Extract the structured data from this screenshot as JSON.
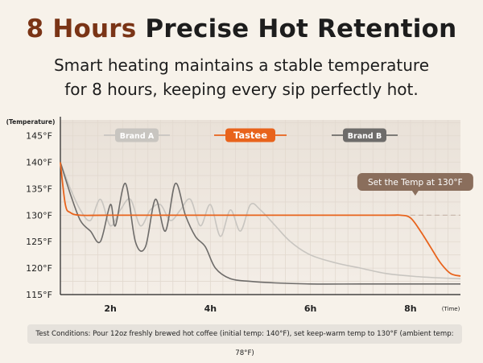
{
  "headline": {
    "highlight": "8 Hours",
    "rest": "Precise Hot Retention"
  },
  "subtitle": {
    "line1": "Smart heating maintains a stable temperature",
    "line2": "for 8 hours, keeping every sip perfectly hot."
  },
  "footnote": "Test Conditions: Pour 12oz freshly brewed hot coffee (initial temp: 140°F), set keep-warm temp to 130°F (ambient temp: 78°F)",
  "colors": {
    "background": "#f7f2ea",
    "brand_a": "#c8c5c0",
    "tastee": "#e8631c",
    "brand_b": "#6e6c6a",
    "callout": "#8a6e5c",
    "headline_accent": "#7a3416"
  },
  "chart_data": {
    "type": "line",
    "ylabel": "(Temperature)",
    "xlabel": "(Time)",
    "y_ticks": [
      "145°F",
      "140°F",
      "135°F",
      "130°F",
      "125°F",
      "120°F",
      "115°F"
    ],
    "y_tick_values": [
      145,
      140,
      135,
      130,
      125,
      120,
      115
    ],
    "x_ticks": [
      "2h",
      "4h",
      "6h",
      "8h"
    ],
    "x_tick_values": [
      2,
      4,
      6,
      8
    ],
    "xlim": [
      1.0,
      9.0
    ],
    "ylim": [
      115,
      148
    ],
    "grid": true,
    "legend_position": "top",
    "annotation": {
      "text": "Set the Temp at 130°F",
      "x": 8.0,
      "y": 130
    },
    "reference_line": {
      "y": 130,
      "style": "dashed"
    },
    "series": [
      {
        "name": "Brand A",
        "color": "#c8c5c0",
        "x": [
          1.0,
          1.2,
          1.4,
          1.6,
          1.8,
          2.0,
          2.2,
          2.4,
          2.6,
          2.8,
          3.0,
          3.2,
          3.4,
          3.6,
          3.8,
          4.0,
          4.2,
          4.4,
          4.6,
          4.8,
          5.0,
          5.3,
          5.6,
          6.0,
          6.5,
          7.0,
          7.5,
          8.0,
          8.5,
          9.0
        ],
        "y": [
          140,
          135,
          131,
          129,
          133,
          128,
          131,
          133,
          128,
          131,
          132,
          129,
          131,
          133,
          128,
          132,
          126,
          131,
          127,
          132,
          131,
          128,
          125,
          122.5,
          121,
          120,
          119,
          118.5,
          118.2,
          118
        ]
      },
      {
        "name": "Tastee",
        "color": "#e8631c",
        "x": [
          1.0,
          1.1,
          1.2,
          1.4,
          2.0,
          4.0,
          6.0,
          7.5,
          7.8,
          8.0,
          8.2,
          8.4,
          8.6,
          8.8,
          9.0
        ],
        "y": [
          140,
          132,
          130.5,
          130,
          130,
          130,
          130,
          130,
          130,
          129.5,
          127,
          124,
          121,
          119,
          118.5
        ]
      },
      {
        "name": "Brand B",
        "color": "#6e6c6a",
        "x": [
          1.0,
          1.2,
          1.4,
          1.6,
          1.8,
          2.0,
          2.1,
          2.3,
          2.5,
          2.7,
          2.9,
          3.1,
          3.3,
          3.5,
          3.7,
          3.9,
          4.1,
          4.4,
          4.8,
          5.3,
          6.0,
          7.0,
          8.0,
          9.0
        ],
        "y": [
          140,
          134,
          129,
          127,
          125,
          132,
          128,
          136,
          125,
          124,
          133,
          127,
          136,
          130,
          126,
          124,
          120,
          118,
          117.5,
          117.2,
          117,
          117,
          117,
          117
        ]
      }
    ]
  }
}
